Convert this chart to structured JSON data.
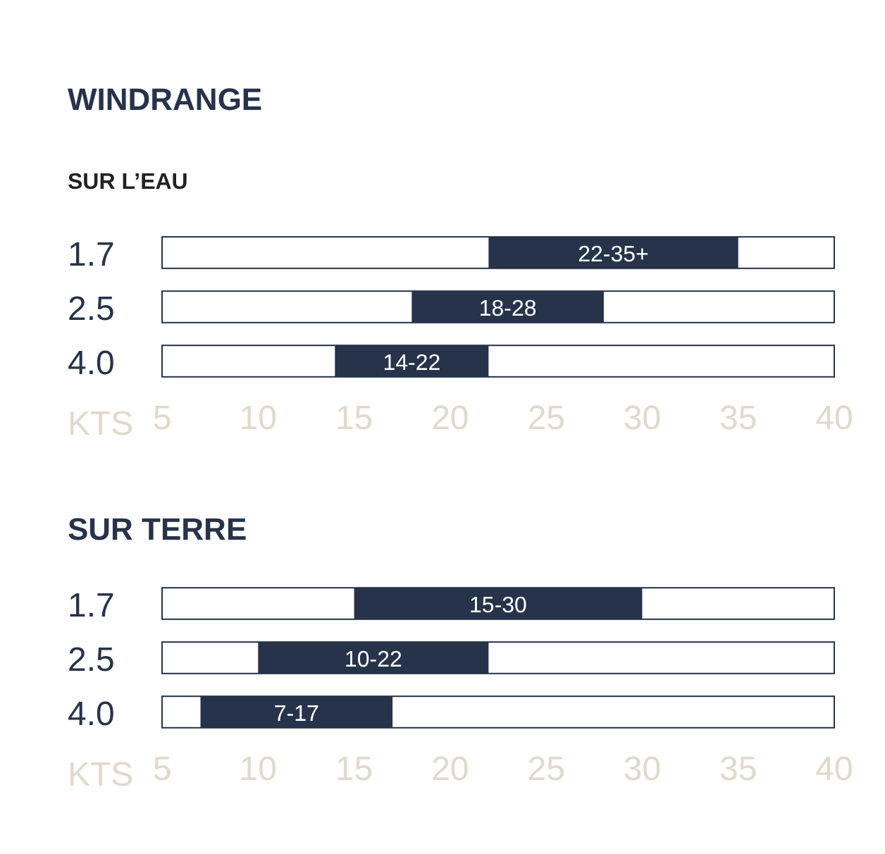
{
  "chart_data": [
    {
      "type": "bar",
      "orientation": "horizontal",
      "title": "WINDRANGE",
      "subtitle": "SUR L’EAU",
      "xlabel": "KTS",
      "categories": [
        "1.7",
        "2.5",
        "4.0"
      ],
      "series": [
        {
          "color": "#26334a",
          "values": [
            13,
            10,
            8
          ],
          "base": [
            22,
            18,
            14
          ],
          "value_labels": [
            "22-35+",
            "18-28",
            "14-22"
          ]
        }
      ],
      "xlim": [
        5,
        40
      ],
      "xticks": [
        5,
        10,
        15,
        20,
        25,
        30,
        35,
        40
      ],
      "grid": false
    },
    {
      "type": "bar",
      "orientation": "horizontal",
      "title": "SUR TERRE",
      "xlabel": "KTS",
      "categories": [
        "1.7",
        "2.5",
        "4.0"
      ],
      "series": [
        {
          "color": "#26334a",
          "values": [
            15,
            12,
            10
          ],
          "base": [
            15,
            10,
            7
          ],
          "value_labels": [
            "15-30",
            "10-22",
            "7-17"
          ]
        }
      ],
      "xlim": [
        5,
        40
      ],
      "xticks": [
        5,
        10,
        15,
        20,
        25,
        30,
        35,
        40
      ],
      "grid": false
    }
  ]
}
